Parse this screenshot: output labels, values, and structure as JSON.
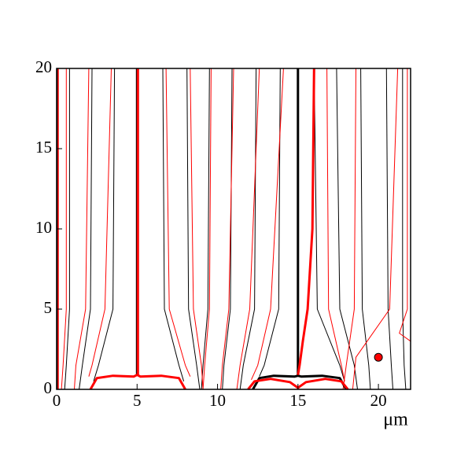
{
  "chart_data": {
    "type": "line",
    "xlabel": "μm",
    "xlim": [
      0,
      22
    ],
    "ylim": [
      0,
      20
    ],
    "xticks": [
      0,
      5,
      10,
      15,
      20
    ],
    "yticks": [
      0,
      5,
      10,
      15,
      20
    ],
    "series": [
      {
        "color": "#000000",
        "linewidth": 1,
        "x": [
          0.8,
          0.8,
          0.6,
          0.5
        ],
        "y": [
          20,
          5,
          1.5,
          0
        ]
      },
      {
        "color": "#000000",
        "linewidth": 1,
        "x": [
          2.2,
          2.1,
          1.6,
          1.4
        ],
        "y": [
          20,
          5,
          1.5,
          0
        ]
      },
      {
        "color": "#000000",
        "linewidth": 1,
        "x": [
          3.6,
          3.5,
          2.6,
          2.3
        ],
        "y": [
          20,
          5,
          1.5,
          0.5
        ]
      },
      {
        "color": "#000000",
        "linewidth": 1,
        "x": [
          6.6,
          6.7,
          7.6,
          7.9
        ],
        "y": [
          20,
          5,
          1.5,
          0.5
        ]
      },
      {
        "color": "#000000",
        "linewidth": 1,
        "x": [
          8.1,
          8.2,
          8.7,
          8.9
        ],
        "y": [
          20,
          5,
          1.5,
          0
        ]
      },
      {
        "color": "#000000",
        "linewidth": 1,
        "x": [
          9.5,
          9.4,
          9.1,
          9.0
        ],
        "y": [
          20,
          5,
          1.5,
          0
        ]
      },
      {
        "color": "#000000",
        "linewidth": 1,
        "x": [
          10.9,
          10.8,
          10.4,
          10.3
        ],
        "y": [
          20,
          5,
          1.5,
          0
        ]
      },
      {
        "color": "#000000",
        "linewidth": 1,
        "x": [
          12.4,
          12.3,
          11.6,
          11.4
        ],
        "y": [
          20,
          5,
          1.5,
          0
        ]
      },
      {
        "color": "#000000",
        "linewidth": 1,
        "x": [
          13.9,
          13.8,
          12.9,
          12.6
        ],
        "y": [
          20,
          5,
          1.5,
          0.8
        ]
      },
      {
        "color": "#000000",
        "linewidth": 1,
        "x": [
          16.0,
          16.2,
          17.6,
          17.9
        ],
        "y": [
          20,
          5,
          1.5,
          0.5
        ]
      },
      {
        "color": "#000000",
        "linewidth": 1,
        "x": [
          17.4,
          17.6,
          18.5,
          18.7
        ],
        "y": [
          20,
          5,
          1.5,
          0
        ]
      },
      {
        "color": "#000000",
        "linewidth": 1,
        "x": [
          18.9,
          19.0,
          19.4,
          19.5
        ],
        "y": [
          20,
          5,
          1.5,
          0
        ]
      },
      {
        "color": "#000000",
        "linewidth": 1,
        "x": [
          20.5,
          20.6,
          20.8,
          20.9
        ],
        "y": [
          20,
          5,
          1.5,
          0
        ]
      },
      {
        "color": "#000000",
        "linewidth": 1,
        "x": [
          21.5,
          21.5,
          21.6,
          21.7
        ],
        "y": [
          20,
          5,
          1.5,
          0
        ]
      },
      {
        "color": "#ff0000",
        "linewidth": 1,
        "x": [
          0.6,
          0.6,
          0.4,
          0.3
        ],
        "y": [
          20,
          5,
          1.5,
          0
        ]
      },
      {
        "color": "#ff0000",
        "linewidth": 1,
        "x": [
          2.0,
          1.8,
          1.2,
          1.1
        ],
        "y": [
          20,
          5,
          1.5,
          0
        ]
      },
      {
        "color": "#ff0000",
        "linewidth": 1,
        "x": [
          3.4,
          3.0,
          2.2,
          2.0
        ],
        "y": [
          20,
          5,
          1.5,
          0.8
        ]
      },
      {
        "color": "#ff0000",
        "linewidth": 1,
        "x": [
          6.8,
          7.0,
          8.0,
          8.3
        ],
        "y": [
          20,
          5,
          1.5,
          0.8
        ]
      },
      {
        "color": "#ff0000",
        "linewidth": 1,
        "x": [
          8.3,
          8.5,
          9.0,
          9.1
        ],
        "y": [
          20,
          5,
          1.5,
          0
        ]
      },
      {
        "color": "#ff0000",
        "linewidth": 1,
        "x": [
          9.6,
          9.5,
          9.2,
          9.1
        ],
        "y": [
          20,
          5,
          1.5,
          0
        ]
      },
      {
        "color": "#ff0000",
        "linewidth": 1,
        "x": [
          11.0,
          10.7,
          10.3,
          10.2
        ],
        "y": [
          20,
          5,
          1.5,
          0
        ]
      },
      {
        "color": "#ff0000",
        "linewidth": 1,
        "x": [
          12.6,
          12.0,
          11.4,
          11.2
        ],
        "y": [
          20,
          5,
          1.5,
          0
        ]
      },
      {
        "color": "#ff0000",
        "linewidth": 1,
        "x": [
          14.1,
          13.3,
          12.5,
          12.1
        ],
        "y": [
          20,
          5,
          1.5,
          0.6
        ]
      },
      {
        "color": "#ff0000",
        "linewidth": 1,
        "x": [
          16.8,
          16.9,
          17.7,
          17.9
        ],
        "y": [
          20,
          5,
          1.5,
          0.5
        ]
      },
      {
        "color": "#ff0000",
        "linewidth": 1,
        "x": [
          18.6,
          18.5,
          18.0,
          17.8
        ],
        "y": [
          20,
          5,
          1.5,
          0
        ]
      },
      {
        "color": "#ff0000",
        "linewidth": 1,
        "x": [
          21.2,
          20.7,
          19.3,
          18.6,
          18.4
        ],
        "y": [
          20,
          5,
          3,
          2,
          0
        ]
      },
      {
        "color": "#ff0000",
        "linewidth": 1,
        "x": [
          21.8,
          21.8,
          21.3,
          22
        ],
        "y": [
          20,
          5,
          3.5,
          3
        ]
      },
      {
        "color": "#000000",
        "linewidth": 3,
        "x": [
          0.05,
          0.05
        ],
        "y": [
          0,
          20
        ]
      },
      {
        "color": "#ff0000",
        "linewidth": 1.5,
        "x": [
          0.1,
          0.1
        ],
        "y": [
          0,
          20
        ]
      },
      {
        "color": "#000000",
        "linewidth": 3,
        "x": [
          5,
          5
        ],
        "y": [
          20,
          0.85
        ]
      },
      {
        "color": "#000000",
        "linewidth": 3,
        "x": [
          15,
          15
        ],
        "y": [
          20,
          0.85
        ]
      },
      {
        "color": "#000000",
        "linewidth": 3,
        "x": [
          12.2,
          12.6,
          13.5,
          14.8,
          15,
          15.2,
          16.5,
          17.6,
          18.0
        ],
        "y": [
          0,
          0.7,
          0.85,
          0.8,
          0.85,
          0.8,
          0.85,
          0.7,
          0
        ]
      },
      {
        "color": "#ff0000",
        "linewidth": 3,
        "x": [
          5.05,
          5.05
        ],
        "y": [
          20,
          0.9
        ]
      },
      {
        "color": "#ff0000",
        "linewidth": 3,
        "x": [
          2.1,
          2.5,
          3.5,
          4.8,
          5,
          5.2,
          6.5,
          7.6,
          8.0
        ],
        "y": [
          0,
          0.7,
          0.85,
          0.8,
          0.9,
          0.8,
          0.85,
          0.7,
          0
        ]
      },
      {
        "color": "#ff0000",
        "linewidth": 3,
        "x": [
          16.0,
          15.9,
          15.6,
          15.3,
          15.1,
          15.0
        ],
        "y": [
          20,
          10,
          5,
          3,
          1.5,
          0.9
        ]
      },
      {
        "color": "#ff0000",
        "linewidth": 3,
        "x": [
          11.9,
          12.3,
          13.3,
          14.5,
          15,
          15.5,
          16.7,
          17.7,
          18.1
        ],
        "y": [
          0,
          0.5,
          0.65,
          0.45,
          0.1,
          0.45,
          0.65,
          0.5,
          0
        ]
      }
    ],
    "marker": {
      "x": 20,
      "y": 2,
      "color": "#ff0000"
    }
  }
}
